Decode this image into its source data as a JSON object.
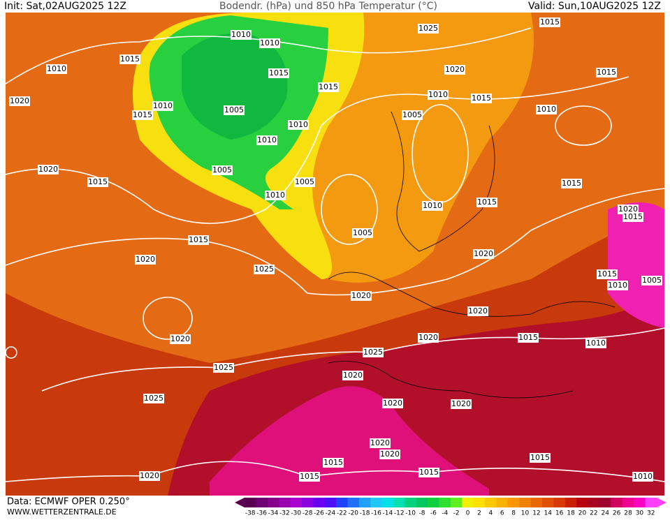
{
  "header": {
    "init": "Init: Sat,02AUG2025 12Z",
    "title": "Bodendr. (hPa) und 850 hPa Temperatur (°C)",
    "valid": "Valid: Sun,10AUG2025 12Z"
  },
  "footer": {
    "data": "Data: ECMWF OPER 0.250°",
    "site": "WWW.WETTERZENTRALE.DE"
  },
  "colorbar": {
    "ticks": [
      -38,
      -36,
      -34,
      -32,
      -30,
      -28,
      -26,
      -24,
      -22,
      -20,
      -18,
      -16,
      -14,
      -12,
      -10,
      -8,
      -6,
      -4,
      -2,
      0,
      2,
      4,
      6,
      8,
      10,
      12,
      14,
      16,
      18,
      20,
      22,
      24,
      26,
      28,
      30,
      32
    ],
    "colors": [
      "#5a0050",
      "#6e0070",
      "#86008c",
      "#9a00b0",
      "#aa00d0",
      "#8c00e0",
      "#6a00f0",
      "#4a10ff",
      "#2040ff",
      "#2070ff",
      "#20a0ff",
      "#20c8ff",
      "#00e0e8",
      "#00e0b0",
      "#00d080",
      "#00c860",
      "#10d040",
      "#30e030",
      "#60f020",
      "#f0f000",
      "#ffe000",
      "#ffc800",
      "#ffb000",
      "#ff9800",
      "#f08000",
      "#e86800",
      "#e05000",
      "#d83800",
      "#c82000",
      "#b80010",
      "#a80020",
      "#a00030",
      "#d00060",
      "#f00090",
      "#ff00c0",
      "#ff40ff"
    ]
  },
  "isobar_labels": [
    "1010",
    "1010",
    "1025",
    "1015",
    "1015",
    "1010",
    "1020",
    "1015",
    "1015",
    "1015",
    "1010",
    "1015",
    "1020",
    "1010",
    "1005",
    "1005",
    "1010",
    "1015",
    "1010",
    "1010",
    "1020",
    "1005",
    "1015",
    "1005",
    "1015",
    "1010",
    "1010",
    "1015",
    "1020",
    "1015",
    "1005",
    "1015",
    "1020",
    "1020",
    "1025",
    "1015",
    "1010",
    "1005",
    "1020",
    "1020",
    "1020",
    "1020",
    "1015",
    "1010",
    "1025",
    "1025",
    "1020",
    "1025",
    "1020",
    "1020",
    "1020",
    "1020",
    "1015",
    "1015",
    "1015",
    "1015",
    "1020",
    "1010"
  ]
}
